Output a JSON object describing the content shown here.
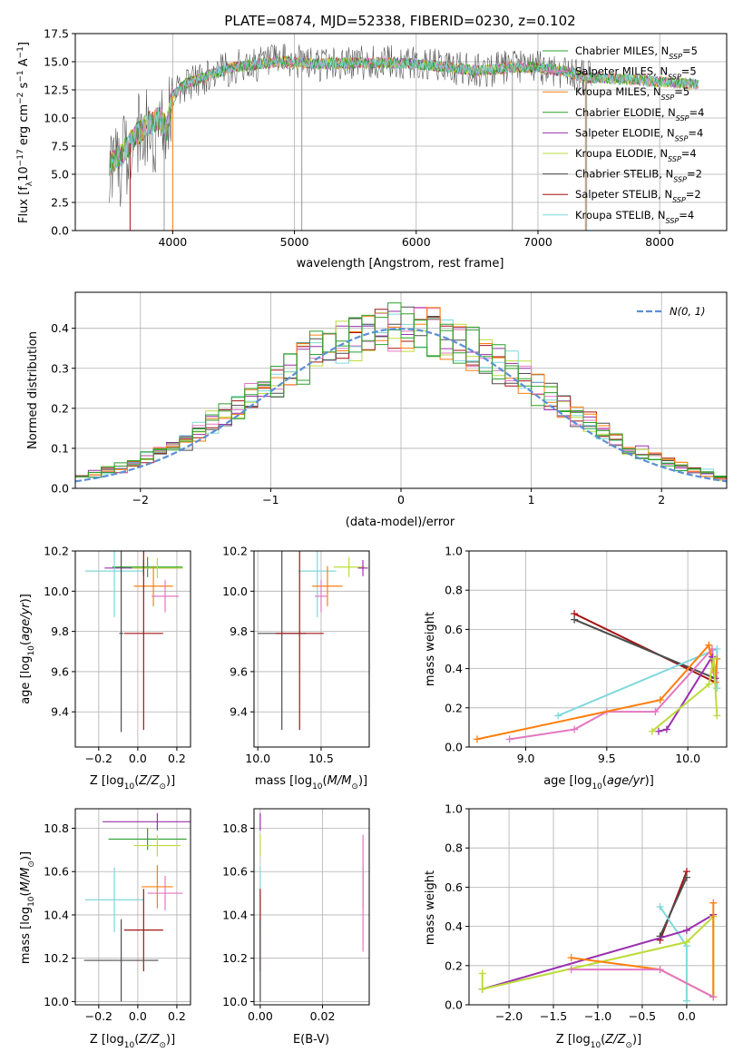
{
  "title": "PLATE=0874, MJD=52338, FIBERID=0230, z=0.102",
  "colors": {
    "chabrier_miles": "#2ca02c",
    "salpeter_miles": "#e377c2",
    "kroupa_miles": "#ff7f0e",
    "chabrier_elodie": "#2ca02c",
    "salpeter_elodie": "#9b2fae",
    "kroupa_elodie": "#bcdc3b",
    "chabrier_stelib": "#4d4d4d",
    "salpeter_stelib": "#a31414",
    "kroupa_stelib": "#7fd8dc",
    "gaussian": "#5b8fd6"
  },
  "legend": [
    {
      "key": "chabrier_miles",
      "text": "Chabrier MILES, N"
    },
    {
      "key": "salpeter_miles",
      "text": "Salpeter MILES, N"
    },
    {
      "key": "kroupa_miles",
      "text": "Kroupa MILES, N"
    },
    {
      "key": "chabrier_elodie",
      "text": "Chabrier ELODIE, N"
    },
    {
      "key": "salpeter_elodie",
      "text": "Salpeter ELODIE, N"
    },
    {
      "key": "kroupa_elodie",
      "text": "Kroupa ELODIE, N"
    },
    {
      "key": "chabrier_stelib",
      "text": "Chabrier STELIB, N"
    },
    {
      "key": "salpeter_stelib",
      "text": "Salpeter STELIB, N"
    },
    {
      "key": "kroupa_stelib",
      "text": "Kroupa STELIB, N"
    }
  ],
  "legend_sub": "SSP",
  "legend_n": [
    "=5",
    "=5",
    "=5",
    "=4",
    "=4",
    "=4",
    "=2",
    "=2",
    "=4"
  ],
  "chart_data": [
    {
      "type": "line",
      "panel": "spectrum",
      "xlabel": "wavelength [Angstrom, rest frame]",
      "ylabel": "Flux [f",
      "xlim": [
        3200,
        8550
      ],
      "ylim": [
        0,
        17.5
      ],
      "xticks": [
        4000,
        5000,
        6000,
        7000,
        8000
      ],
      "yticks": [
        0.0,
        2.5,
        5.0,
        7.5,
        10.0,
        12.5,
        15.0,
        17.5
      ],
      "continuum_x": [
        3500,
        3600,
        3700,
        3800,
        3900,
        3950,
        4000,
        4100,
        4300,
        4500,
        4700,
        4900,
        5000,
        5200,
        5500,
        5800,
        6000,
        6200,
        6500,
        6800,
        7000,
        7200,
        7400,
        7600,
        7800,
        8000,
        8300
      ],
      "continuum_y": [
        6.0,
        7.0,
        8.5,
        9.5,
        10.0,
        9.0,
        12.0,
        13.0,
        13.8,
        14.5,
        14.8,
        15.0,
        15.0,
        14.8,
        14.9,
        14.9,
        14.8,
        14.6,
        14.2,
        14.5,
        14.5,
        14.2,
        13.6,
        13.5,
        13.4,
        13.2,
        13.0
      ],
      "dips": [
        [
          5060,
          0
        ],
        [
          6790,
          0
        ],
        [
          7400,
          0
        ],
        [
          3930,
          0
        ]
      ]
    },
    {
      "type": "bar",
      "panel": "histogram",
      "xlabel": "(data-model)/error",
      "ylabel": "Normed distribution",
      "xlim": [
        -2.5,
        2.5
      ],
      "ylim": [
        0,
        0.49
      ],
      "xticks": [
        -2,
        -1,
        0,
        1,
        2
      ],
      "yticks": [
        0.0,
        0.1,
        0.2,
        0.3,
        0.4
      ],
      "bin_width": 0.1,
      "bin_start": -2.5,
      "gaussian_label": "N(0, 1)"
    },
    {
      "type": "scatter",
      "panel": "age-vs-Z",
      "xlabel": "Z [log",
      "ylabel": "age  [log",
      "xlim": [
        -0.32,
        0.27
      ],
      "ylim": [
        9.225,
        10.2
      ],
      "xticks": [
        -0.2,
        0.0,
        0.2
      ],
      "yticks": [
        9.4,
        9.6,
        9.8,
        10.0,
        10.2
      ],
      "points": [
        {
          "key": "salpeter_elodie",
          "x": 0.03,
          "y": 10.115,
          "xe": 0.2,
          "ye": 0.04
        },
        {
          "key": "chabrier_elodie",
          "x": 0.05,
          "y": 10.12,
          "xe": 0.18,
          "ye": 0.05
        },
        {
          "key": "kroupa_elodie",
          "x": 0.1,
          "y": 10.115,
          "xe": 0.13,
          "ye": 0.05
        },
        {
          "key": "kroupa_stelib",
          "x": -0.12,
          "y": 10.1,
          "xe": 0.15,
          "ye": 0.23
        },
        {
          "key": "kroupa_miles",
          "x": 0.08,
          "y": 10.025,
          "xe": 0.1,
          "ye": 0.1
        },
        {
          "key": "salpeter_miles",
          "x": 0.14,
          "y": 9.975,
          "xe": 0.07,
          "ye": 0.08
        },
        {
          "key": "chabrier_stelib",
          "x": -0.085,
          "y": 9.79,
          "xe": 0.01,
          "ye": 0.49
        },
        {
          "key": "salpeter_stelib",
          "x": 0.03,
          "y": 9.79,
          "xe": 0.1,
          "ye": 0.48
        }
      ]
    },
    {
      "type": "scatter",
      "panel": "age-vs-mass",
      "xlabel": "mass [log",
      "ylabel": "",
      "xlim": [
        9.97,
        10.88
      ],
      "ylim": [
        9.225,
        10.2
      ],
      "xticks": [
        10.0,
        10.5
      ],
      "yticks": [
        9.4,
        9.6,
        9.8,
        10.0,
        10.2
      ],
      "points": [
        {
          "key": "kroupa_stelib",
          "x": 10.47,
          "y": 10.1,
          "xe": 0.15,
          "ye": 0.23
        },
        {
          "key": "kroupa_elodie",
          "x": 10.72,
          "y": 10.12,
          "xe": 0.12,
          "ye": 0.05
        },
        {
          "key": "salpeter_elodie",
          "x": 10.83,
          "y": 10.115,
          "xe": 0.04,
          "ye": 0.04
        },
        {
          "key": "kroupa_miles",
          "x": 10.55,
          "y": 10.025,
          "xe": 0.12,
          "ye": 0.1
        },
        {
          "key": "salpeter_miles",
          "x": 10.5,
          "y": 9.975,
          "xe": 0.05,
          "ye": 0.08
        },
        {
          "key": "chabrier_stelib",
          "x": 10.19,
          "y": 9.79,
          "xe": 0.19,
          "ye": 0.48
        },
        {
          "key": "salpeter_stelib",
          "x": 10.33,
          "y": 9.79,
          "xe": 0.19,
          "ye": 0.48
        }
      ]
    },
    {
      "type": "line",
      "panel": "weight-vs-age",
      "xlabel": "age  [log",
      "ylabel": "mass weight",
      "xlim": [
        8.65,
        10.24
      ],
      "ylim": [
        0,
        1.0
      ],
      "xticks": [
        9.0,
        9.5,
        10.0
      ],
      "yticks": [
        0.0,
        0.2,
        0.4,
        0.6,
        0.8,
        1.0
      ],
      "series": [
        {
          "key": "salpeter_stelib",
          "x": [
            9.3,
            10.17
          ],
          "y": [
            0.68,
            0.33
          ]
        },
        {
          "key": "chabrier_stelib",
          "x": [
            9.3,
            10.17
          ],
          "y": [
            0.65,
            0.35
          ]
        },
        {
          "key": "kroupa_stelib",
          "x": [
            9.2,
            10.18,
            10.18
          ],
          "y": [
            0.16,
            0.5,
            0.3
          ]
        },
        {
          "key": "salpeter_miles",
          "x": [
            8.9,
            9.3,
            9.5,
            9.8,
            10.15,
            10.17
          ],
          "y": [
            0.04,
            0.09,
            0.18,
            0.18,
            0.5,
            0.38
          ]
        },
        {
          "key": "kroupa_miles",
          "x": [
            8.7,
            9.83,
            10.13,
            10.17,
            10.18
          ],
          "y": [
            0.04,
            0.24,
            0.52,
            0.33,
            0.45
          ]
        },
        {
          "key": "salpeter_elodie",
          "x": [
            9.82,
            9.87,
            10.15,
            10.17
          ],
          "y": [
            0.08,
            0.09,
            0.46,
            0.35
          ]
        },
        {
          "key": "kroupa_elodie",
          "x": [
            9.78,
            10.13,
            10.16,
            10.18
          ],
          "y": [
            0.08,
            0.32,
            0.45,
            0.16
          ]
        }
      ]
    },
    {
      "type": "scatter",
      "panel": "mass-vs-Z",
      "xlabel": "Z [log",
      "ylabel": "mass [log",
      "xlim": [
        -0.32,
        0.27
      ],
      "ylim": [
        9.985,
        10.89
      ],
      "xticks": [
        -0.2,
        0.0,
        0.2
      ],
      "yticks": [
        10.0,
        10.2,
        10.4,
        10.6,
        10.8
      ],
      "points": [
        {
          "key": "salpeter_elodie",
          "x": 0.1,
          "y": 10.83,
          "xe": 0.28,
          "ye": 0.04
        },
        {
          "key": "chabrier_elodie",
          "x": 0.05,
          "y": 10.75,
          "xe": 0.2,
          "ye": 0.05
        },
        {
          "key": "kroupa_elodie",
          "x": 0.1,
          "y": 10.72,
          "xe": 0.12,
          "ye": 0.05
        },
        {
          "key": "kroupa_miles",
          "x": 0.1,
          "y": 10.53,
          "xe": 0.08,
          "ye": 0.1
        },
        {
          "key": "salpeter_miles",
          "x": 0.14,
          "y": 10.5,
          "xe": 0.09,
          "ye": 0.08
        },
        {
          "key": "kroupa_stelib",
          "x": -0.12,
          "y": 10.47,
          "xe": 0.15,
          "ye": 0.15
        },
        {
          "key": "salpeter_stelib",
          "x": 0.03,
          "y": 10.33,
          "xe": 0.1,
          "ye": 0.19
        },
        {
          "key": "chabrier_stelib",
          "x": -0.085,
          "y": 10.19,
          "xe": 0.19,
          "ye": 0.19
        }
      ]
    },
    {
      "type": "scatter",
      "panel": "mass-vs-ebv",
      "xlabel": "E(B-V)",
      "ylabel": "",
      "xlim": [
        -0.002,
        0.035
      ],
      "ylim": [
        9.985,
        10.89
      ],
      "xticks": [
        0.0,
        0.02
      ],
      "yticks": [
        10.0,
        10.2,
        10.4,
        10.6,
        10.8
      ],
      "points": [
        {
          "key": "salpeter_elodie",
          "x": 0.0,
          "y": 10.83,
          "xe": 0,
          "ye": 0.04
        },
        {
          "key": "kroupa_elodie",
          "x": 0.0,
          "y": 10.72,
          "xe": 0,
          "ye": 0.05
        },
        {
          "key": "kroupa_stelib",
          "x": 0.0,
          "y": 10.47,
          "xe": 0,
          "ye": 0.15
        },
        {
          "key": "salpeter_stelib",
          "x": 0.0,
          "y": 10.33,
          "xe": 0,
          "ye": 0.19
        },
        {
          "key": "chabrier_stelib",
          "x": 0.0,
          "y": 10.19,
          "xe": 0,
          "ye": 0.19
        },
        {
          "key": "kroupa_miles",
          "x": 0.033,
          "y": 10.53,
          "xe": 0,
          "ye": 0.1
        },
        {
          "key": "salpeter_miles",
          "x": 0.033,
          "y": 10.5,
          "xe": 0,
          "ye": 0.27
        }
      ]
    },
    {
      "type": "line",
      "panel": "weight-vs-Z",
      "xlabel": "Z [log",
      "ylabel": "mass weight",
      "xlim": [
        -2.45,
        0.45
      ],
      "ylim": [
        0,
        1.0
      ],
      "xticks": [
        -2.0,
        -1.5,
        -1.0,
        -0.5,
        0.0
      ],
      "yticks": [
        0.0,
        0.2,
        0.4,
        0.6,
        0.8,
        1.0
      ],
      "series": [
        {
          "key": "salpeter_stelib",
          "x": [
            -0.3,
            0.0
          ],
          "y": [
            0.33,
            0.68
          ]
        },
        {
          "key": "chabrier_stelib",
          "x": [
            -0.3,
            0.0
          ],
          "y": [
            0.35,
            0.65
          ]
        },
        {
          "key": "kroupa_stelib",
          "x": [
            -0.3,
            0.0,
            0.0
          ],
          "y": [
            0.5,
            0.3,
            0.02
          ]
        },
        {
          "key": "salpeter_elodie",
          "x": [
            -2.3,
            0.0,
            0.3
          ],
          "y": [
            0.08,
            0.38,
            0.46
          ]
        },
        {
          "key": "kroupa_elodie",
          "x": [
            -2.3,
            -2.3,
            0.0,
            0.3,
            0.3
          ],
          "y": [
            0.16,
            0.08,
            0.32,
            0.45,
            0.04
          ]
        },
        {
          "key": "kroupa_miles",
          "x": [
            -1.3,
            -0.3,
            0.3,
            0.3
          ],
          "y": [
            0.24,
            0.18,
            0.04,
            0.52
          ]
        },
        {
          "key": "salpeter_miles",
          "x": [
            -1.3,
            -0.3,
            0.3
          ],
          "y": [
            0.18,
            0.18,
            0.04
          ]
        }
      ]
    }
  ]
}
